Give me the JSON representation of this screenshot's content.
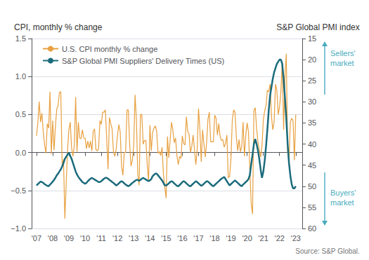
{
  "chart_data": {
    "type": "line",
    "ylabel": "CPI, monthly % change",
    "y2label": "S&P Global PMI index",
    "source": "Source: S&P Global.",
    "annotations": [
      {
        "text": "Sellers'\nmarket",
        "color": "#4AACBE"
      },
      {
        "text": "Buyers'\nmarket",
        "color": "#4AACBE"
      }
    ],
    "legend": "upper left",
    "grid": true,
    "xlim": [
      2006.7,
      2023.4
    ],
    "xticks": [
      {
        "value": 2007,
        "label": "'07"
      },
      {
        "value": 2008,
        "label": "'08"
      },
      {
        "value": 2009,
        "label": "'09"
      },
      {
        "value": 2010,
        "label": "'10"
      },
      {
        "value": 2011,
        "label": "'11"
      },
      {
        "value": 2012,
        "label": "'12"
      },
      {
        "value": 2013,
        "label": "'13"
      },
      {
        "value": 2014,
        "label": "'14"
      },
      {
        "value": 2015,
        "label": "'15"
      },
      {
        "value": 2016,
        "label": "'16"
      },
      {
        "value": 2017,
        "label": "'17"
      },
      {
        "value": 2018,
        "label": "'18"
      },
      {
        "value": 2019,
        "label": "'19"
      },
      {
        "value": 2020,
        "label": "'20"
      },
      {
        "value": 2021,
        "label": "'21"
      },
      {
        "value": 2022,
        "label": "'22"
      },
      {
        "value": 2023,
        "label": "'23"
      }
    ],
    "ylim": [
      -1.0,
      1.5
    ],
    "yticks": [
      {
        "value": -1.0,
        "label": "−1.0"
      },
      {
        "value": -0.5,
        "label": "−0.5"
      },
      {
        "value": 0.0,
        "label": "0.0"
      },
      0.5,
      {
        "value": 1.0,
        "label": "1.0"
      },
      1.5
    ],
    "y2lim": [
      60,
      15
    ],
    "y2ticks": [
      15,
      20,
      25,
      30,
      35,
      40,
      45,
      50,
      55,
      60
    ],
    "x": [
      2007,
      2007.083333,
      2007.166667,
      2007.25,
      2007.333333,
      2007.416667,
      2007.5,
      2007.583333,
      2007.666667,
      2007.75,
      2007.833333,
      2007.916667,
      2008,
      2008.083333,
      2008.166667,
      2008.25,
      2008.333333,
      2008.416667,
      2008.5,
      2008.583333,
      2008.666667,
      2008.75,
      2008.833333,
      2008.916667,
      2009,
      2009.083333,
      2009.166667,
      2009.25,
      2009.333333,
      2009.416667,
      2009.5,
      2009.583333,
      2009.666667,
      2009.75,
      2009.833333,
      2009.916667,
      2010,
      2010.083333,
      2010.166667,
      2010.25,
      2010.333333,
      2010.416667,
      2010.5,
      2010.583333,
      2010.666667,
      2010.75,
      2010.833333,
      2010.916667,
      2011,
      2011.083333,
      2011.166667,
      2011.25,
      2011.333333,
      2011.416667,
      2011.5,
      2011.583333,
      2011.666667,
      2011.75,
      2011.833333,
      2011.916667,
      2012,
      2012.083333,
      2012.166667,
      2012.25,
      2012.333333,
      2012.416667,
      2012.5,
      2012.583333,
      2012.666667,
      2012.75,
      2012.833333,
      2012.916667,
      2013,
      2013.083333,
      2013.166667,
      2013.25,
      2013.333333,
      2013.416667,
      2013.5,
      2013.583333,
      2013.666667,
      2013.75,
      2013.833333,
      2013.916667,
      2014,
      2014.083333,
      2014.166667,
      2014.25,
      2014.333333,
      2014.416667,
      2014.5,
      2014.583333,
      2014.666667,
      2014.75,
      2014.833333,
      2014.916667,
      2015,
      2015.083333,
      2015.166667,
      2015.25,
      2015.333333,
      2015.416667,
      2015.5,
      2015.583333,
      2015.666667,
      2015.75,
      2015.833333,
      2015.916667,
      2016,
      2016.083333,
      2016.166667,
      2016.25,
      2016.333333,
      2016.416667,
      2016.5,
      2016.583333,
      2016.666667,
      2016.75,
      2016.833333,
      2016.916667,
      2017,
      2017.083333,
      2017.166667,
      2017.25,
      2017.333333,
      2017.416667,
      2017.5,
      2017.583333,
      2017.666667,
      2017.75,
      2017.833333,
      2017.916667,
      2018,
      2018.083333,
      2018.166667,
      2018.25,
      2018.333333,
      2018.416667,
      2018.5,
      2018.583333,
      2018.666667,
      2018.75,
      2018.833333,
      2018.916667,
      2019,
      2019.083333,
      2019.166667,
      2019.25,
      2019.333333,
      2019.416667,
      2019.5,
      2019.583333,
      2019.666667,
      2019.75,
      2019.833333,
      2019.916667,
      2020,
      2020.083333,
      2020.166667,
      2020.25,
      2020.333333,
      2020.416667,
      2020.5,
      2020.583333,
      2020.666667,
      2020.75,
      2020.833333,
      2020.916667,
      2021,
      2021.083333,
      2021.166667,
      2021.25,
      2021.333333,
      2021.416667,
      2021.5,
      2021.583333,
      2021.666667,
      2021.75,
      2021.833333,
      2021.916667,
      2022,
      2022.083333,
      2022.166667,
      2022.25,
      2022.333333,
      2022.416667,
      2022.5,
      2022.583333,
      2022.666667,
      2022.75,
      2022.833333,
      2022.916667,
      2023
    ],
    "series": [
      {
        "name": "U.S. CPI monthly % change",
        "color": "#E8A040",
        "values": [
          0.22,
          0.39,
          0.67,
          0.4,
          0.52,
          0.27,
          0.1,
          -0.01,
          0.38,
          0.32,
          0.8,
          -0.02,
          0.42,
          0.03,
          0.34,
          0.57,
          0.62,
          0.79,
          0.8,
          -0.17,
          -0.09,
          -0.87,
          -0.4,
          0.03,
          0.3,
          0.4,
          0.06,
          -0.05,
          0.09,
          0.73,
          0.01,
          0.4,
          0.19,
          0.18,
          0.3,
          0.19,
          0.19,
          0.05,
          0.15,
          0.06,
          0.15,
          0.02,
          0.28,
          0.31,
          0.04,
          0.02,
          0.05,
          0.42,
          0.37,
          0.53,
          0.53,
          0.56,
          0.18,
          -0.22,
          0.46,
          0.38,
          0.31,
          0.01,
          -0.05,
          0.04,
          0.23,
          0.37,
          0.27,
          -0.18,
          -0.3,
          0.0,
          0.0,
          0.56,
          0.56,
          0.11,
          -0.18,
          -0.1,
          0.09,
          0.76,
          0.43,
          -0.29,
          -0.43,
          0.5,
          0.5,
          0.11,
          0.16,
          0.16,
          -0.15,
          -0.38,
          0.36,
          0.02,
          0.26,
          0.32,
          0.35,
          0.28,
          -0.01,
          0.01,
          -0.04,
          0.07,
          -0.28,
          -0.45,
          -0.6,
          0.21,
          -0.07,
          0.17,
          0.4,
          0.29,
          0.13,
          0.19,
          -0.04,
          -0.16,
          -0.05,
          -0.08,
          0.22,
          0.12,
          0.1,
          0.47,
          0.28,
          0.24,
          0.0,
          0.08,
          0.23,
          0.04,
          -0.16,
          0.03,
          0.58,
          0.31,
          -0.12,
          0.3,
          0.11,
          -0.06,
          0.13,
          0.44,
          0.53,
          0.14,
          0.14,
          0.14,
          0.49,
          0.45,
          0.23,
          0.38,
          0.21,
          0.16,
          0.17,
          0.07,
          0.12,
          0.23,
          -0.33,
          -0.32,
          -0.09,
          0.42,
          0.56,
          0.53,
          0.21,
          0.02,
          0.17,
          0.01,
          0.08,
          0.4,
          -0.05,
          0.23,
          0.39,
          0.27,
          -0.22,
          -0.67,
          -0.81,
          0.55,
          0.59,
          0.32,
          0.14,
          0.04,
          -0.06,
          0.09,
          0.43,
          0.55,
          0.62,
          0.82,
          0.8,
          0.9,
          0.48,
          0.3,
          0.4,
          0.9,
          0.82,
          0.5,
          0.6,
          0.8,
          1.2,
          0.3,
          1.0,
          1.3,
          0.0,
          -0.1,
          0.4,
          0.45,
          0.42,
          -0.1,
          0.5
        ]
      },
      {
        "name": "S&P Global PMI Suppliers' Delivery Times (US)",
        "color": "#1A6B7C",
        "axis": "y2",
        "values": [
          49.8,
          49.5,
          49.2,
          48.9,
          49.0,
          49.2,
          49.5,
          49.7,
          49.9,
          50.0,
          49.6,
          49.3,
          48.9,
          48.5,
          48.0,
          47.4,
          47.0,
          46.5,
          46.0,
          45.3,
          44.5,
          43.5,
          43.0,
          42.5,
          42.0,
          42.8,
          43.5,
          44.5,
          45.5,
          46.5,
          47.2,
          47.8,
          48.2,
          48.6,
          49.0,
          49.2,
          49.4,
          49.2,
          48.8,
          48.5,
          48.2,
          48.0,
          48.2,
          48.4,
          48.6,
          48.8,
          49.0,
          49.0,
          48.8,
          48.5,
          48.2,
          48.0,
          48.0,
          48.2,
          48.5,
          48.7,
          49.0,
          49.2,
          49.5,
          49.8,
          49.6,
          49.3,
          49.0,
          48.8,
          49.0,
          49.3,
          49.6,
          49.8,
          50.0,
          49.8,
          49.5,
          49.2,
          49.0,
          48.7,
          48.5,
          48.5,
          48.7,
          48.5,
          48.2,
          48.0,
          48.2,
          48.4,
          48.6,
          48.8,
          48.6,
          48.3,
          47.6,
          47.3,
          47.0,
          47.0,
          47.4,
          47.8,
          48.2,
          48.6,
          49.2,
          49.8,
          49.8,
          49.6,
          49.3,
          49.0,
          48.8,
          49.0,
          49.3,
          49.6,
          49.9,
          50.0,
          49.7,
          49.4,
          49.0,
          48.8,
          49.0,
          49.3,
          49.6,
          49.9,
          50.0,
          49.7,
          49.4,
          49.1,
          48.8,
          49.0,
          49.3,
          49.6,
          49.9,
          49.7,
          49.4,
          49.1,
          48.8,
          48.9,
          49.2,
          49.5,
          49.8,
          50.0,
          49.7,
          49.4,
          49.1,
          48.8,
          48.5,
          48.2,
          48.0,
          47.8,
          48.3,
          48.8,
          49.3,
          49.8,
          49.5,
          49.2,
          48.9,
          48.6,
          48.9,
          49.2,
          49.5,
          49.8,
          50.0,
          49.6,
          49.3,
          49.0,
          48.7,
          48.3,
          47.3,
          44.8,
          42.5,
          40.0,
          38.8,
          40.0,
          41.5,
          43.5,
          46.0,
          48.0,
          46.5,
          44.0,
          40.5,
          36.5,
          32.0,
          28.5,
          26.5,
          24.5,
          23.0,
          22.0,
          21.0,
          20.5,
          20.0,
          20.0,
          21.0,
          24.5,
          29.0,
          34.0,
          40.0,
          44.5,
          47.5,
          49.5,
          50.5,
          50.5,
          50.0
        ]
      }
    ]
  }
}
